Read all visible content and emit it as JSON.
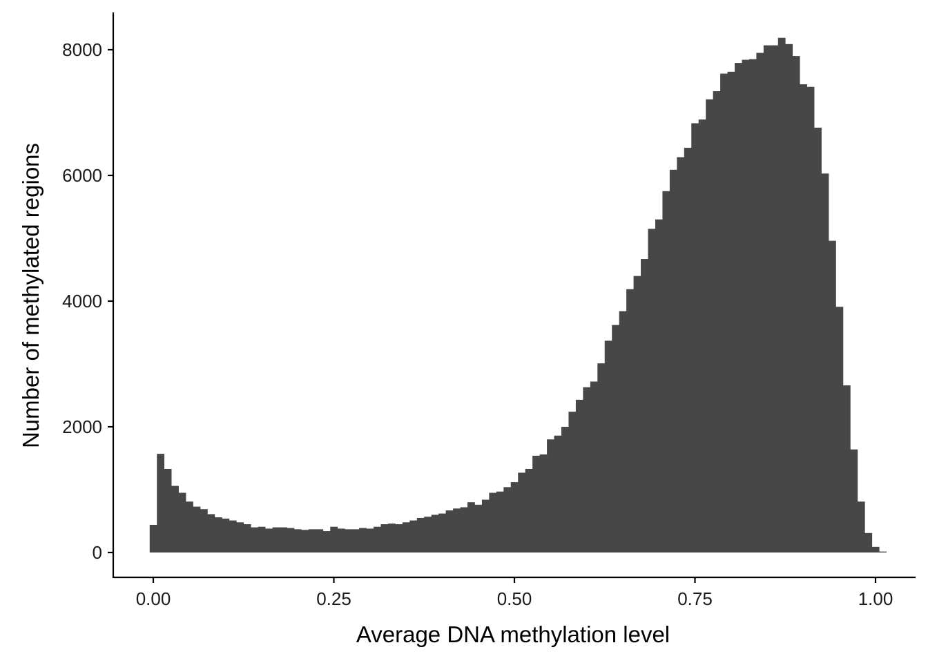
{
  "chart_data": {
    "type": "bar",
    "subtype": "histogram",
    "xlabel": "Average DNA methylation level",
    "ylabel": "Number of methylated regions",
    "xlim": [
      -0.055,
      1.015
    ],
    "ylim": [
      -400,
      8500
    ],
    "x_ticks": [
      0.0,
      0.25,
      0.5,
      0.75,
      1.0
    ],
    "x_tick_labels": [
      "0.00",
      "0.25",
      "0.50",
      "0.75",
      "1.00"
    ],
    "y_ticks": [
      0,
      2000,
      4000,
      6000,
      8000
    ],
    "y_tick_labels": [
      "0",
      "2000",
      "4000",
      "6000",
      "8000"
    ],
    "bin_start": -0.005,
    "bin_width": 0.01,
    "bar_color": "#474747",
    "grid": false,
    "legend": "none",
    "values": [
      440,
      1570,
      1330,
      1060,
      950,
      810,
      730,
      690,
      610,
      560,
      540,
      510,
      480,
      450,
      400,
      410,
      380,
      400,
      400,
      390,
      370,
      360,
      370,
      370,
      340,
      410,
      380,
      370,
      370,
      390,
      380,
      410,
      450,
      460,
      450,
      480,
      510,
      550,
      570,
      600,
      620,
      670,
      700,
      720,
      800,
      760,
      840,
      950,
      970,
      1040,
      1120,
      1270,
      1330,
      1540,
      1560,
      1800,
      1860,
      2000,
      2240,
      2430,
      2630,
      2720,
      3010,
      3370,
      3620,
      3840,
      4190,
      4400,
      4670,
      5150,
      5300,
      5750,
      6090,
      6290,
      6440,
      6830,
      6890,
      7210,
      7340,
      7620,
      7650,
      7790,
      7840,
      7850,
      7950,
      8070,
      8070,
      8190,
      8090,
      7900,
      7450,
      7410,
      6760,
      6030,
      4960,
      3910,
      2660,
      1640,
      810,
      310,
      90,
      15
    ]
  }
}
